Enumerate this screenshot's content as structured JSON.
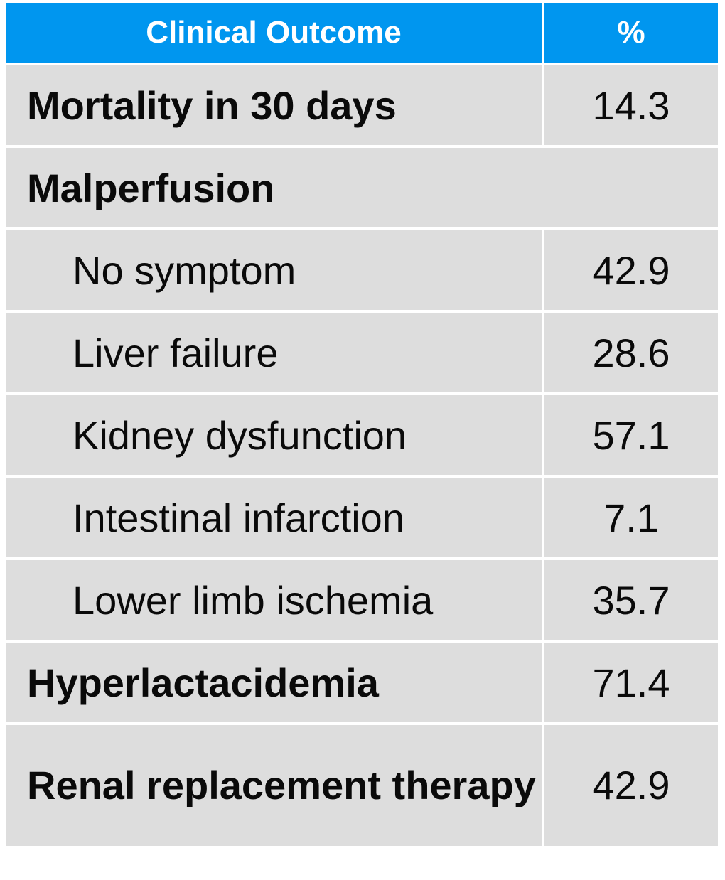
{
  "header": {
    "col_outcome": "Clinical Outcome",
    "col_percent": "%"
  },
  "rows": [
    {
      "label": "Mortality in 30 days",
      "value": "14.3"
    },
    {
      "label": "Malperfusion",
      "value": ""
    },
    {
      "label": "No symptom",
      "value": "42.9"
    },
    {
      "label": "Liver failure",
      "value": "28.6"
    },
    {
      "label": "Kidney dysfunction",
      "value": "57.1"
    },
    {
      "label": "Intestinal infarction",
      "value": "7.1"
    },
    {
      "label": "Lower limb ischemia",
      "value": "35.7"
    },
    {
      "label": "Hyperlactacidemia",
      "value": "71.4"
    },
    {
      "label": "Renal replacement therapy",
      "value": "42.9"
    }
  ],
  "colors": {
    "header_bg": "#0096ef",
    "row_bg": "#dddddd"
  }
}
